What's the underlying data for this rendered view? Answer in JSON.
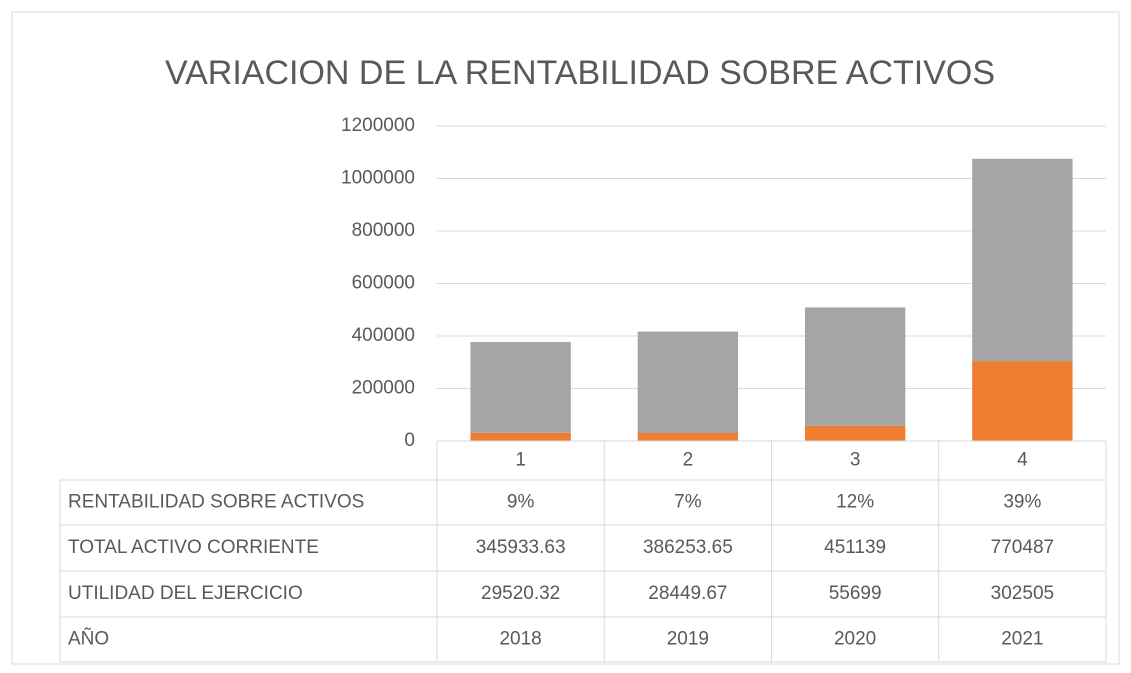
{
  "chart_data": {
    "type": "bar",
    "stacked": true,
    "title": "VARIACION DE LA RENTABILIDAD SOBRE ACTIVOS",
    "categories": [
      "1",
      "2",
      "3",
      "4"
    ],
    "series": [
      {
        "name": "RENTABILIDAD SOBRE ACTIVOS",
        "color": "#ffc000",
        "values": [
          9,
          7,
          12,
          39
        ],
        "value_labels": [
          "9%",
          "7%",
          "12%",
          "39%"
        ]
      },
      {
        "name": "TOTAL ACTIVO CORRIENTE",
        "color": "#a5a5a5",
        "values": [
          345933.63,
          386253.65,
          451139,
          770487
        ]
      },
      {
        "name": "UTILIDAD DEL EJERCICIO",
        "color": "#ed7d31",
        "values": [
          29520.32,
          28449.67,
          55699,
          302505
        ]
      },
      {
        "name": "AÑO",
        "color": "#4472c4",
        "values": [
          2018,
          2019,
          2020,
          2021
        ]
      }
    ],
    "ylim": [
      0,
      1200000
    ],
    "yticks": [
      0,
      200000,
      400000,
      600000,
      800000,
      1000000,
      1200000
    ],
    "grid": true,
    "data_table": true
  }
}
